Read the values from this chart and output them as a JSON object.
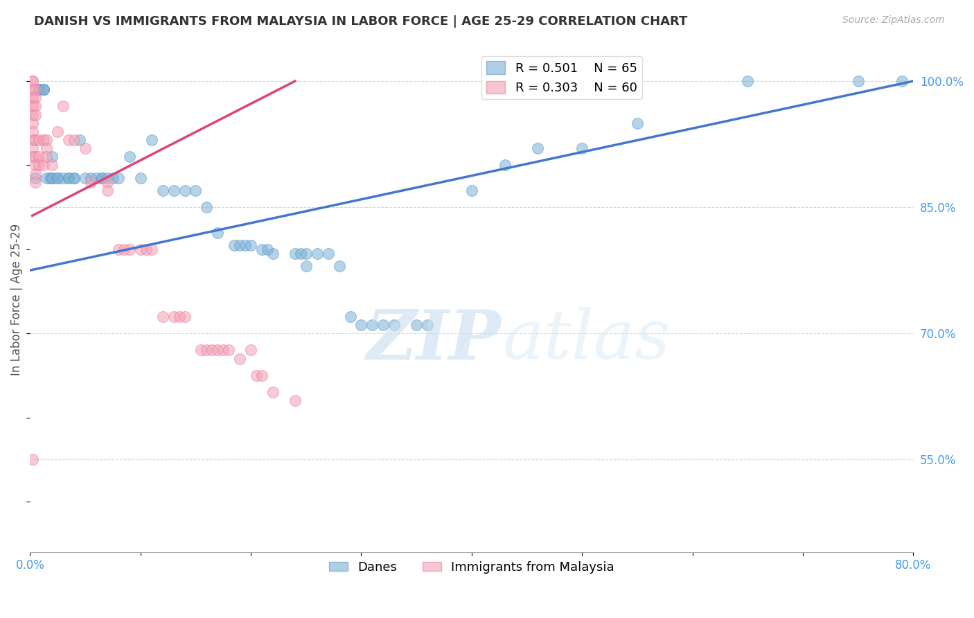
{
  "title": "DANISH VS IMMIGRANTS FROM MALAYSIA IN LABOR FORCE | AGE 25-29 CORRELATION CHART",
  "source": "Source: ZipAtlas.com",
  "ylabel": "In Labor Force | Age 25-29",
  "xlim": [
    0.0,
    0.8
  ],
  "ylim": [
    0.44,
    1.04
  ],
  "x_ticks": [
    0.0,
    0.1,
    0.2,
    0.3,
    0.4,
    0.5,
    0.6,
    0.7,
    0.8
  ],
  "x_tick_labels": [
    "0.0%",
    "",
    "",
    "",
    "",
    "",
    "",
    "",
    "80.0%"
  ],
  "y_ticks_right": [
    0.55,
    0.7,
    0.85,
    1.0
  ],
  "y_tick_labels_right": [
    "55.0%",
    "70.0%",
    "85.0%",
    "100.0%"
  ],
  "grid_color": "#aaccee",
  "grid_style": "--",
  "background_color": "#ffffff",
  "blue_color": "#7bafd4",
  "pink_color": "#f4a0b5",
  "blue_edge_color": "#5599cc",
  "pink_edge_color": "#ee7799",
  "blue_label": "Danes",
  "pink_label": "Immigrants from Malaysia",
  "R_blue": 0.501,
  "N_blue": 65,
  "R_pink": 0.303,
  "N_pink": 60,
  "legend_fontsize": 13,
  "title_fontsize": 13,
  "tick_fontsize": 12,
  "ylabel_fontsize": 12,
  "blue_line_color": "#4477cc",
  "pink_line_color": "#dd4477",
  "blue_scatter_x": [
    0.005,
    0.008,
    0.008,
    0.012,
    0.012,
    0.012,
    0.015,
    0.018,
    0.02,
    0.02,
    0.02,
    0.025,
    0.025,
    0.03,
    0.035,
    0.035,
    0.04,
    0.04,
    0.045,
    0.05,
    0.055,
    0.06,
    0.065,
    0.065,
    0.07,
    0.075,
    0.08,
    0.09,
    0.1,
    0.11,
    0.12,
    0.13,
    0.14,
    0.15,
    0.16,
    0.17,
    0.185,
    0.19,
    0.195,
    0.2,
    0.21,
    0.215,
    0.22,
    0.24,
    0.245,
    0.25,
    0.25,
    0.26,
    0.27,
    0.28,
    0.29,
    0.3,
    0.31,
    0.32,
    0.33,
    0.35,
    0.36,
    0.4,
    0.43,
    0.46,
    0.5,
    0.55,
    0.65,
    0.75,
    0.79
  ],
  "blue_scatter_y": [
    0.885,
    0.99,
    0.99,
    0.99,
    0.99,
    0.99,
    0.885,
    0.885,
    0.91,
    0.885,
    0.885,
    0.885,
    0.885,
    0.885,
    0.885,
    0.885,
    0.885,
    0.885,
    0.93,
    0.885,
    0.885,
    0.885,
    0.885,
    0.885,
    0.885,
    0.885,
    0.885,
    0.91,
    0.885,
    0.93,
    0.87,
    0.87,
    0.87,
    0.87,
    0.85,
    0.82,
    0.805,
    0.805,
    0.805,
    0.805,
    0.8,
    0.8,
    0.795,
    0.795,
    0.795,
    0.795,
    0.78,
    0.795,
    0.795,
    0.78,
    0.72,
    0.71,
    0.71,
    0.71,
    0.71,
    0.71,
    0.71,
    0.87,
    0.9,
    0.92,
    0.92,
    0.95,
    1.0,
    1.0,
    1.0
  ],
  "pink_scatter_x": [
    0.002,
    0.002,
    0.002,
    0.002,
    0.002,
    0.002,
    0.002,
    0.002,
    0.002,
    0.002,
    0.002,
    0.005,
    0.005,
    0.005,
    0.005,
    0.005,
    0.005,
    0.005,
    0.005,
    0.005,
    0.008,
    0.008,
    0.008,
    0.012,
    0.012,
    0.015,
    0.015,
    0.015,
    0.02,
    0.025,
    0.03,
    0.035,
    0.04,
    0.05,
    0.055,
    0.07,
    0.07,
    0.08,
    0.085,
    0.09,
    0.1,
    0.105,
    0.11,
    0.12,
    0.13,
    0.135,
    0.14,
    0.155,
    0.16,
    0.165,
    0.17,
    0.175,
    0.18,
    0.19,
    0.2,
    0.205,
    0.21,
    0.22,
    0.24,
    0.002
  ],
  "pink_scatter_y": [
    1.0,
    1.0,
    0.99,
    0.98,
    0.97,
    0.96,
    0.95,
    0.94,
    0.93,
    0.92,
    0.91,
    0.99,
    0.98,
    0.97,
    0.96,
    0.93,
    0.91,
    0.9,
    0.89,
    0.88,
    0.93,
    0.91,
    0.9,
    0.93,
    0.9,
    0.93,
    0.92,
    0.91,
    0.9,
    0.94,
    0.97,
    0.93,
    0.93,
    0.92,
    0.88,
    0.88,
    0.87,
    0.8,
    0.8,
    0.8,
    0.8,
    0.8,
    0.8,
    0.72,
    0.72,
    0.72,
    0.72,
    0.68,
    0.68,
    0.68,
    0.68,
    0.68,
    0.68,
    0.67,
    0.68,
    0.65,
    0.65,
    0.63,
    0.62,
    0.55
  ],
  "blue_line_x": [
    0.0,
    0.8
  ],
  "blue_line_y": [
    0.775,
    1.0
  ],
  "pink_line_x": [
    0.002,
    0.24
  ],
  "pink_line_y": [
    0.84,
    1.0
  ]
}
